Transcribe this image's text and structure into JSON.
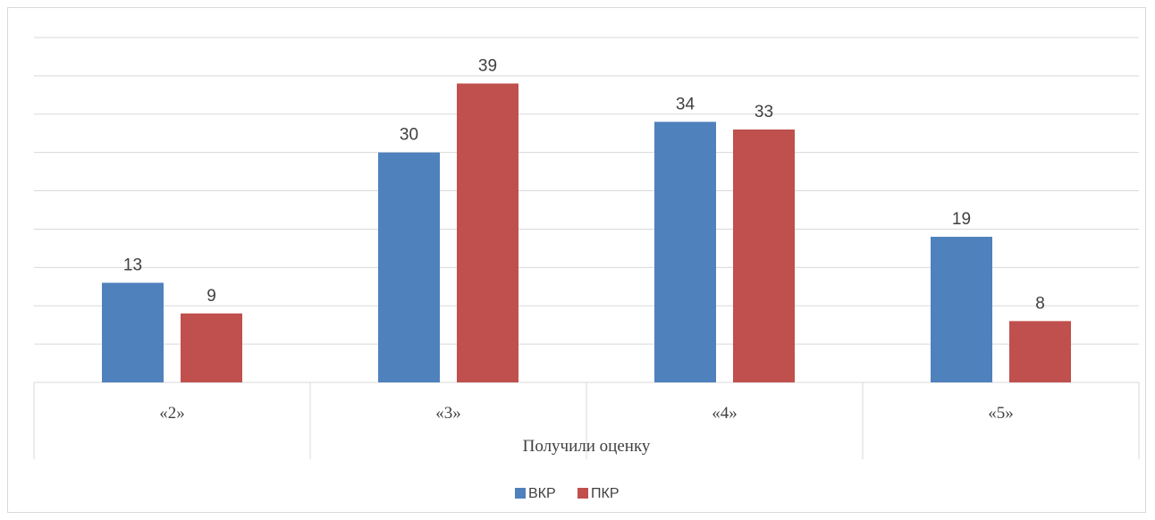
{
  "chart_data": {
    "type": "bar",
    "categories": [
      "«2»",
      "«3»",
      "«4»",
      "«5»"
    ],
    "series": [
      {
        "name": "ВКР",
        "values": [
          13,
          30,
          34,
          19
        ],
        "color": "#4f81bd"
      },
      {
        "name": "ПКР",
        "values": [
          9,
          39,
          33,
          8
        ],
        "color": "#c0504d"
      }
    ],
    "xlabel": "Получили оценку",
    "ylabel": "",
    "ylim": [
      0,
      45
    ],
    "grid": true,
    "legend": "bottom",
    "show_data_labels": true
  }
}
